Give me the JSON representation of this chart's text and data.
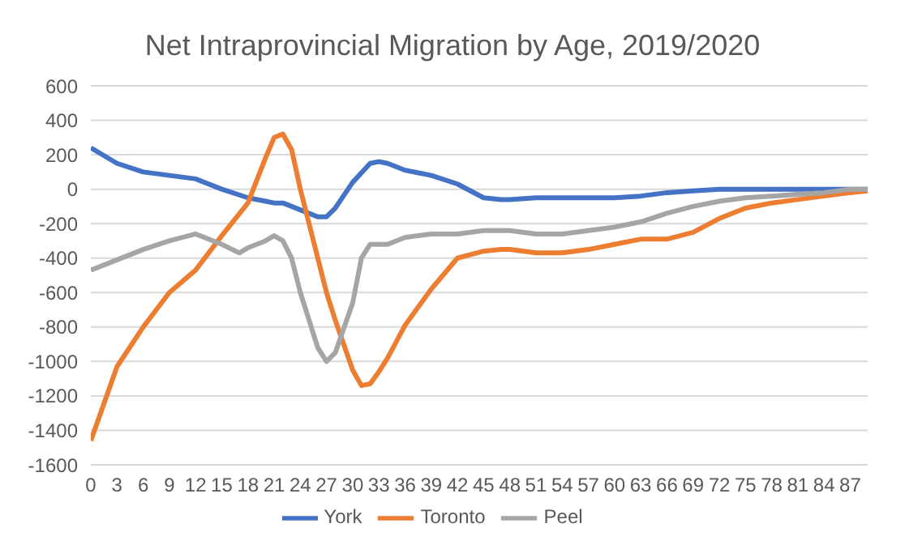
{
  "chart_data": {
    "type": "line",
    "title": "Net Intraprovincial Migration by Age, 2019/2020",
    "xlim": [
      0,
      89
    ],
    "xticks": [
      0,
      3,
      6,
      9,
      12,
      15,
      18,
      21,
      24,
      27,
      30,
      33,
      36,
      39,
      42,
      45,
      48,
      51,
      54,
      57,
      60,
      63,
      66,
      69,
      72,
      75,
      78,
      81,
      84,
      87
    ],
    "ylim": [
      -1600,
      600
    ],
    "yticks": [
      -1600,
      -1400,
      -1200,
      -1000,
      -800,
      -600,
      -400,
      -200,
      0,
      200,
      400,
      600
    ],
    "grid": "y",
    "legend": "bottom",
    "marker": "none",
    "line_style": "solid",
    "series": [
      {
        "name": "York",
        "color": "#4472c4",
        "x": [
          0,
          3,
          6,
          9,
          12,
          15,
          18,
          20,
          21,
          22,
          23,
          24,
          26,
          27,
          28,
          30,
          32,
          33,
          34,
          36,
          39,
          42,
          45,
          47,
          48,
          51,
          54,
          57,
          60,
          63,
          66,
          69,
          72,
          75,
          78,
          81,
          84,
          87,
          89
        ],
        "values": [
          240,
          150,
          100,
          80,
          60,
          0,
          -50,
          -70,
          -80,
          -80,
          -100,
          -120,
          -160,
          -160,
          -110,
          40,
          150,
          160,
          150,
          110,
          80,
          30,
          -50,
          -60,
          -60,
          -50,
          -50,
          -50,
          -50,
          -40,
          -20,
          -10,
          0,
          0,
          0,
          0,
          0,
          0,
          0
        ]
      },
      {
        "name": "Toronto",
        "color": "#ed7d31",
        "x": [
          0,
          3,
          6,
          9,
          12,
          15,
          18,
          20,
          21,
          22,
          23,
          24,
          26,
          27,
          28,
          30,
          31,
          32,
          33,
          34,
          36,
          39,
          42,
          45,
          47,
          48,
          51,
          54,
          57,
          60,
          63,
          66,
          69,
          72,
          75,
          78,
          81,
          84,
          87,
          89
        ],
        "values": [
          -1460,
          -1030,
          -800,
          -600,
          -470,
          -270,
          -80,
          180,
          300,
          320,
          230,
          0,
          -400,
          -600,
          -760,
          -1050,
          -1140,
          -1130,
          -1060,
          -980,
          -790,
          -580,
          -400,
          -360,
          -350,
          -350,
          -370,
          -370,
          -350,
          -320,
          -290,
          -290,
          -250,
          -170,
          -110,
          -80,
          -60,
          -40,
          -20,
          -10
        ]
      },
      {
        "name": "Peel",
        "color": "#a5a5a5",
        "x": [
          0,
          3,
          6,
          9,
          12,
          15,
          17,
          18,
          20,
          21,
          22,
          23,
          24,
          26,
          27,
          28,
          30,
          31,
          32,
          33,
          34,
          36,
          39,
          42,
          45,
          48,
          51,
          54,
          57,
          60,
          63,
          66,
          69,
          72,
          75,
          78,
          81,
          84,
          87,
          89
        ],
        "values": [
          -470,
          -410,
          -350,
          -300,
          -260,
          -320,
          -370,
          -340,
          -300,
          -270,
          -300,
          -400,
          -600,
          -920,
          -1000,
          -950,
          -660,
          -400,
          -320,
          -320,
          -320,
          -280,
          -260,
          -260,
          -240,
          -240,
          -260,
          -260,
          -240,
          -220,
          -190,
          -140,
          -100,
          -70,
          -50,
          -40,
          -30,
          -20,
          0,
          0
        ]
      }
    ]
  }
}
